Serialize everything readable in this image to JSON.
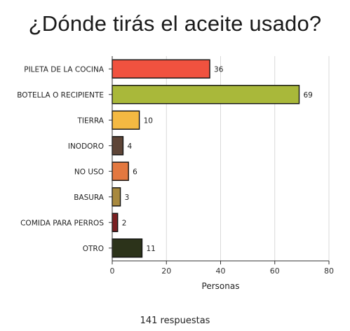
{
  "title": "¿Dónde tirás el aceite usado?",
  "footer": "141 respuestas",
  "chart_data": {
    "type": "bar",
    "orientation": "horizontal",
    "categories": [
      "PILETA DE LA COCINA",
      "BOTELLA O RECIPIENTE",
      "TIERRA",
      "INODORO",
      "NO USO",
      "BASURA",
      "COMIDA PARA PERROS",
      "OTRO"
    ],
    "values": [
      36,
      69,
      10,
      4,
      6,
      3,
      2,
      11
    ],
    "colors": [
      "#f0523f",
      "#a9b83a",
      "#f4b942",
      "#5e4537",
      "#e37840",
      "#a8893e",
      "#7a1f21",
      "#2c331a"
    ],
    "xlabel": "Personas",
    "ylabel": "",
    "xlim": [
      0,
      80
    ],
    "xticks": [
      0,
      20,
      40,
      60,
      80
    ],
    "grid": true,
    "data_labels": true
  }
}
